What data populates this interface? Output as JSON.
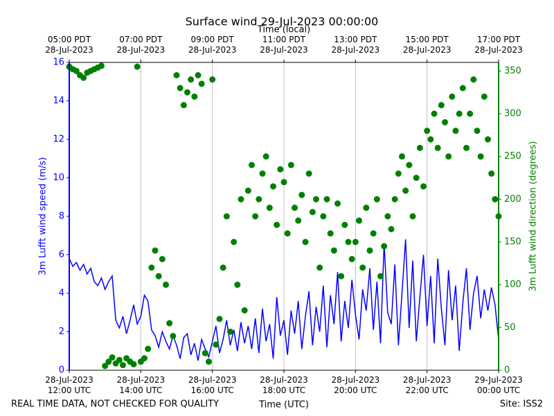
{
  "chart_data": {
    "type": "line",
    "title": "Surface wind 29-Jul-2023 00:00:00",
    "xlabel": "Time (UTC)",
    "top_xlabel": "Time (local)",
    "ylabel": "3m Lufft wind speed (m/s)",
    "y2label": "3m Lufft wind direction (degrees)",
    "footer_left": "REAL TIME DATA, NOT CHECKED FOR QUALITY",
    "footer_right": "Site: ISS2",
    "grid": "x",
    "xlim": [
      0,
      12
    ],
    "xticks": [
      {
        "value": 0,
        "label": "28-Jul-2023\n12:00 UTC"
      },
      {
        "value": 2,
        "label": "28-Jul-2023\n14:00 UTC"
      },
      {
        "value": 4,
        "label": "28-Jul-2023\n16:00 UTC"
      },
      {
        "value": 6,
        "label": "28-Jul-2023\n18:00 UTC"
      },
      {
        "value": 8,
        "label": "28-Jul-2023\n20:00 UTC"
      },
      {
        "value": 10,
        "label": "28-Jul-2023\n22:00 UTC"
      },
      {
        "value": 12,
        "label": "29-Jul-2023\n00:00 UTC"
      }
    ],
    "top_xticks": [
      {
        "value": 0,
        "label": "05:00 PDT\n28-Jul-2023"
      },
      {
        "value": 2,
        "label": "07:00 PDT\n28-Jul-2023"
      },
      {
        "value": 4,
        "label": "09:00 PDT\n28-Jul-2023"
      },
      {
        "value": 6,
        "label": "11:00 PDT\n28-Jul-2023"
      },
      {
        "value": 8,
        "label": "13:00 PDT\n28-Jul-2023"
      },
      {
        "value": 10,
        "label": "15:00 PDT\n28-Jul-2023"
      },
      {
        "value": 12,
        "label": "17:00 PDT\n28-Jul-2023"
      }
    ],
    "ylim": [
      0,
      16
    ],
    "yticks": [
      0,
      2,
      4,
      6,
      8,
      10,
      12,
      14,
      16
    ],
    "y2lim": [
      0,
      360
    ],
    "y2ticks": [
      0,
      50,
      100,
      150,
      200,
      250,
      300,
      350
    ],
    "x": [
      0.0,
      0.1,
      0.2,
      0.3,
      0.4,
      0.5,
      0.6,
      0.7,
      0.8,
      0.9,
      1.0,
      1.1,
      1.2,
      1.3,
      1.4,
      1.5,
      1.6,
      1.7,
      1.8,
      1.9,
      2.0,
      2.1,
      2.2,
      2.3,
      2.4,
      2.5,
      2.6,
      2.7,
      2.8,
      2.9,
      3.0,
      3.1,
      3.2,
      3.3,
      3.4,
      3.5,
      3.6,
      3.7,
      3.8,
      3.9,
      4.0,
      4.1,
      4.2,
      4.3,
      4.4,
      4.5,
      4.6,
      4.7,
      4.8,
      4.9,
      5.0,
      5.1,
      5.2,
      5.3,
      5.4,
      5.5,
      5.6,
      5.7,
      5.8,
      5.9,
      6.0,
      6.1,
      6.2,
      6.3,
      6.4,
      6.5,
      6.6,
      6.7,
      6.8,
      6.9,
      7.0,
      7.1,
      7.2,
      7.3,
      7.4,
      7.5,
      7.6,
      7.7,
      7.8,
      7.9,
      8.0,
      8.1,
      8.2,
      8.3,
      8.4,
      8.5,
      8.6,
      8.7,
      8.8,
      8.9,
      9.0,
      9.1,
      9.2,
      9.3,
      9.4,
      9.5,
      9.6,
      9.7,
      9.8,
      9.9,
      10.0,
      10.1,
      10.2,
      10.3,
      10.4,
      10.5,
      10.6,
      10.7,
      10.8,
      10.9,
      11.0,
      11.1,
      11.2,
      11.3,
      11.4,
      11.5,
      11.6,
      11.7,
      11.8,
      11.9,
      12.0
    ],
    "series": [
      {
        "name": "3m Lufft wind speed",
        "style": "line",
        "color": "#0000ff",
        "values": [
          5.8,
          5.4,
          5.6,
          5.2,
          5.5,
          5.0,
          5.3,
          4.6,
          4.4,
          4.8,
          4.2,
          4.6,
          4.9,
          2.6,
          2.2,
          2.8,
          1.9,
          2.6,
          3.4,
          2.4,
          2.8,
          3.9,
          3.6,
          2.1,
          1.8,
          1.2,
          2.0,
          1.5,
          1.1,
          1.8,
          1.3,
          0.6,
          1.7,
          1.9,
          0.8,
          1.4,
          0.5,
          1.6,
          1.1,
          0.7,
          1.5,
          2.3,
          0.9,
          1.6,
          2.6,
          1.3,
          2.1,
          1.0,
          2.5,
          1.4,
          2.3,
          1.1,
          2.7,
          0.9,
          3.2,
          1.5,
          2.4,
          0.6,
          3.8,
          1.8,
          2.6,
          0.8,
          3.1,
          1.9,
          3.6,
          1.1,
          2.8,
          4.1,
          1.3,
          3.3,
          2.0,
          4.4,
          1.2,
          3.9,
          2.4,
          5.1,
          1.5,
          3.6,
          2.2,
          4.7,
          2.9,
          1.6,
          4.2,
          3.1,
          5.3,
          2.1,
          4.6,
          1.4,
          6.6,
          3.0,
          2.4,
          5.5,
          1.3,
          4.0,
          6.8,
          2.2,
          5.7,
          1.5,
          3.8,
          6.0,
          2.3,
          4.9,
          1.4,
          5.8,
          3.2,
          1.3,
          5.2,
          2.6,
          4.4,
          1.0,
          3.5,
          5.3,
          2.1,
          4.0,
          4.9,
          2.7,
          4.2,
          3.1,
          4.3,
          3.4,
          1.6
        ]
      },
      {
        "name": "3m Lufft wind direction",
        "style": "scatter",
        "axis": "y2",
        "color": "#008000",
        "values": [
          355,
          352,
          350,
          345,
          342,
          348,
          350,
          352,
          354,
          356,
          5,
          10,
          15,
          8,
          12,
          6,
          14,
          10,
          7,
          355,
          10,
          14,
          25,
          120,
          140,
          110,
          130,
          100,
          55,
          40,
          345,
          330,
          310,
          325,
          340,
          320,
          345,
          335,
          20,
          10,
          340,
          30,
          60,
          120,
          180,
          45,
          150,
          100,
          200,
          70,
          210,
          240,
          180,
          200,
          230,
          250,
          190,
          215,
          170,
          235,
          220,
          160,
          240,
          190,
          175,
          205,
          150,
          230,
          185,
          200,
          120,
          180,
          200,
          160,
          140,
          195,
          110,
          170,
          150,
          130,
          150,
          175,
          120,
          190,
          140,
          160,
          200,
          110,
          145,
          180,
          165,
          200,
          230,
          250,
          210,
          240,
          180,
          225,
          260,
          215,
          280,
          270,
          300,
          260,
          310,
          290,
          250,
          320,
          280,
          300,
          330,
          260,
          300,
          340,
          280,
          250,
          320,
          270,
          230,
          200,
          180
        ]
      }
    ]
  }
}
